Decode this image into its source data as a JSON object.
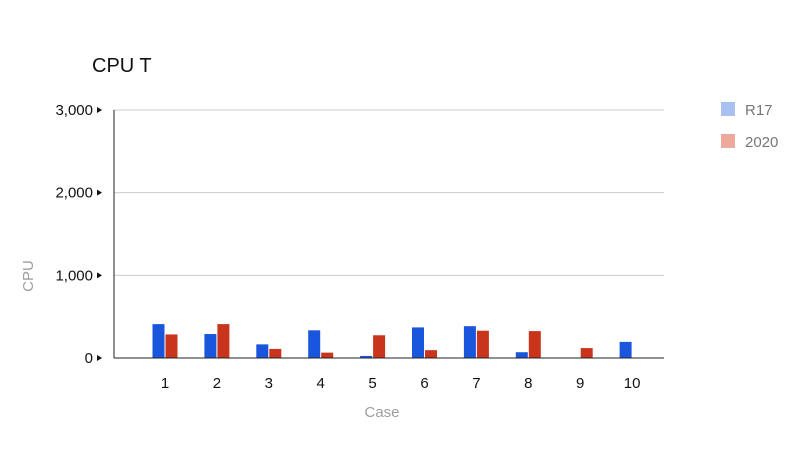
{
  "chart_data": {
    "type": "bar",
    "title": "CPU T",
    "xlabel": "Case",
    "ylabel": "CPU",
    "categories": [
      "1",
      "2",
      "3",
      "4",
      "5",
      "6",
      "7",
      "8",
      "9",
      "10"
    ],
    "series": [
      {
        "name": "R17",
        "color": "#1a56db",
        "values": [
          410,
          290,
          165,
          335,
          25,
          370,
          385,
          70,
          0,
          195
        ]
      },
      {
        "name": "2020",
        "color": "#c8341c",
        "values": [
          285,
          410,
          110,
          65,
          275,
          95,
          330,
          325,
          120,
          null
        ]
      }
    ],
    "ylim": [
      0,
      3000
    ],
    "yticks": [
      0,
      1000,
      2000,
      3000
    ],
    "ytick_labels": [
      "0",
      "1,000",
      "2,000",
      "3,000"
    ],
    "grid": true,
    "legend_position": "right",
    "legend_colors": {
      "R17": "#a9c0f0",
      "2020": "#eea99d"
    }
  }
}
